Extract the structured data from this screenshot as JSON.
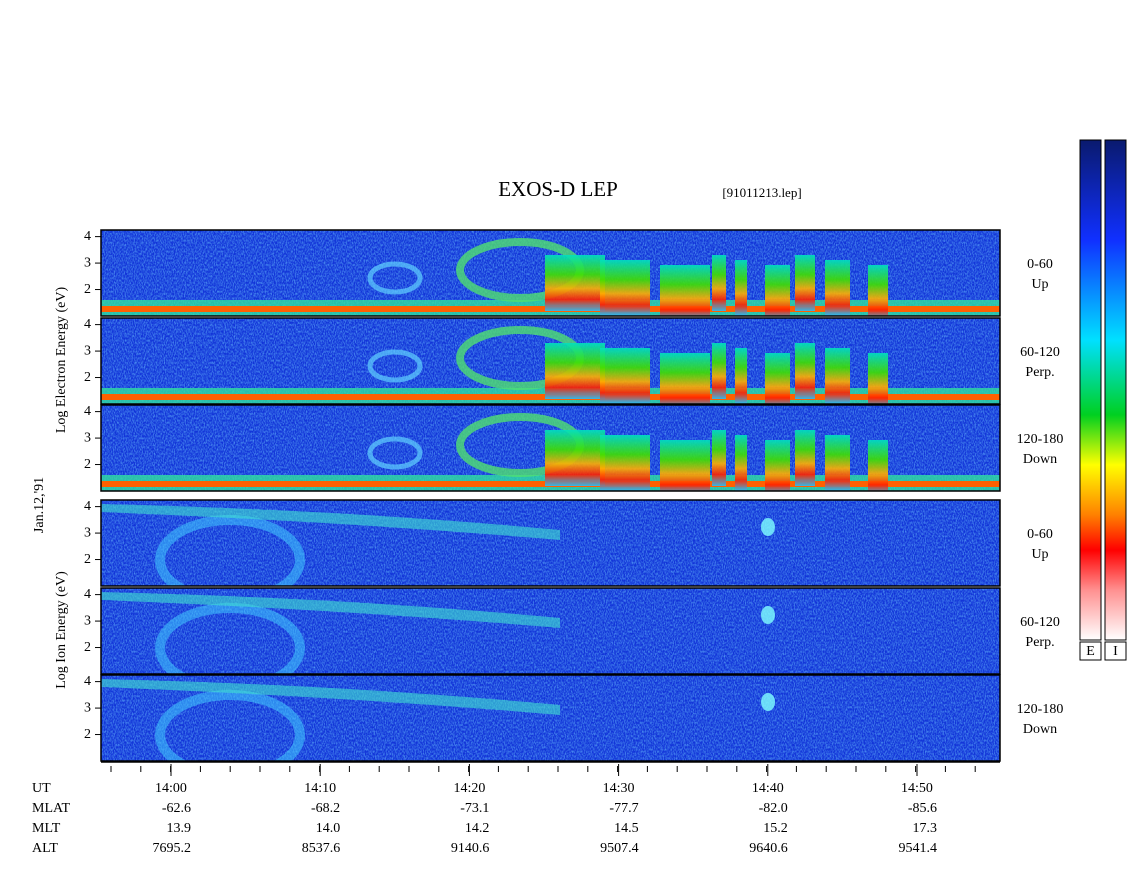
{
  "header": {
    "title": "EXOS-D LEP",
    "file": "[91011213.lep]"
  },
  "date": "Jan.12,'91",
  "yticks": [
    2,
    3,
    4
  ],
  "ylim": [
    1,
    4.25
  ],
  "electron": {
    "axis_label": "Log  Electron  Energy (eV)",
    "panels": [
      {
        "label": "0-60",
        "sublabel": "Up"
      },
      {
        "label": "60-120",
        "sublabel": "Perp."
      },
      {
        "label": "120-180",
        "sublabel": "Down"
      }
    ]
  },
  "ion": {
    "axis_label": "Log  Ion  Energy (eV)",
    "panels": [
      {
        "label": "0-60",
        "sublabel": "Up"
      },
      {
        "label": "60-120",
        "sublabel": "Perp."
      },
      {
        "label": "120-180",
        "sublabel": "Down"
      }
    ]
  },
  "orbit": {
    "rows": [
      {
        "name": "UT",
        "values": [
          "14:00",
          "14:10",
          "14:20",
          "14:30",
          "14:40",
          "14:50"
        ]
      },
      {
        "name": "MLAT",
        "values": [
          "-62.6",
          "-68.2",
          "-73.1",
          "-77.7",
          "-82.0",
          "-85.6"
        ]
      },
      {
        "name": "MLT",
        "values": [
          "13.9",
          "14.0",
          "14.2",
          "14.5",
          "15.2",
          "17.3"
        ]
      },
      {
        "name": "ALT",
        "values": [
          "7695.2",
          "8537.6",
          "9140.6",
          "9507.4",
          "9640.6",
          "9541.4"
        ]
      }
    ]
  },
  "colorbars": [
    "E",
    "I"
  ]
}
